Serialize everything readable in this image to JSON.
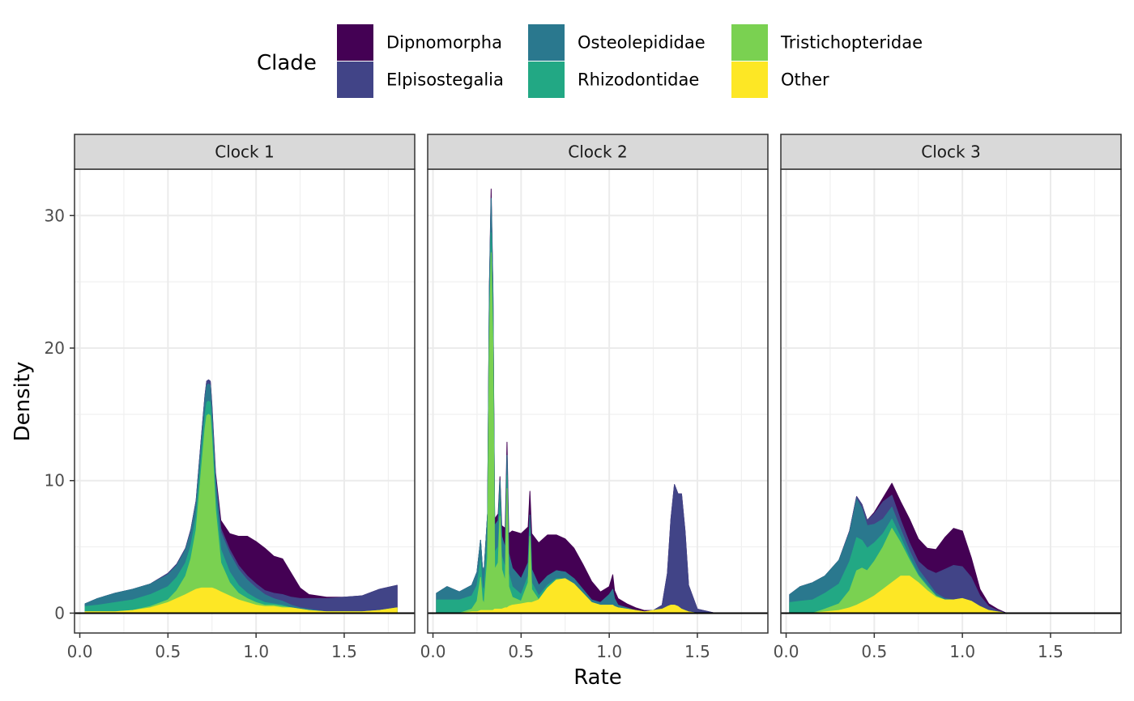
{
  "chart_data": {
    "type": "area",
    "stacked": true,
    "facets": [
      "Clock 1",
      "Clock 2",
      "Clock 3"
    ],
    "xlabel": "Rate",
    "ylabel": "Density",
    "xlim": [
      -0.03,
      1.9
    ],
    "ylim": [
      -1.5,
      33.5
    ],
    "x_ticks": [
      0.0,
      0.5,
      1.0,
      1.5
    ],
    "x_tick_labels": [
      "0.0",
      "0.5",
      "1.0",
      "1.5"
    ],
    "y_ticks": [
      0,
      10,
      20,
      30
    ],
    "y_tick_labels": [
      "0",
      "10",
      "20",
      "30"
    ],
    "grid": true,
    "zero_line": true,
    "legend": {
      "title": "Clade",
      "position": "top",
      "entries": [
        "Dipnomorpha",
        "Elpisostegalia",
        "Osteolepididae",
        "Rhizodontidae",
        "Tristichopteridae",
        "Other"
      ],
      "colors": [
        "#440154",
        "#414487",
        "#2a788e",
        "#22a884",
        "#7ad151",
        "#fde725"
      ]
    },
    "stack_order_bottom_to_top": [
      "Other",
      "Tristichopteridae",
      "Rhizodontidae",
      "Osteolepididae",
      "Elpisostegalia",
      "Dipnomorpha"
    ],
    "panels": [
      {
        "facet": "Clock 1",
        "x": [
          0.03,
          0.1,
          0.2,
          0.3,
          0.4,
          0.5,
          0.55,
          0.6,
          0.63,
          0.66,
          0.69,
          0.71,
          0.72,
          0.73,
          0.74,
          0.75,
          0.77,
          0.8,
          0.85,
          0.9,
          0.95,
          1.0,
          1.05,
          1.1,
          1.15,
          1.2,
          1.25,
          1.3,
          1.4,
          1.5,
          1.6,
          1.7,
          1.8
        ],
        "series": [
          {
            "name": "Other",
            "values": [
              0.1,
              0.1,
              0.1,
              0.2,
              0.4,
              0.8,
              1.1,
              1.4,
              1.6,
              1.8,
              1.9,
              1.9,
              1.9,
              1.9,
              1.9,
              1.9,
              1.8,
              1.6,
              1.3,
              1.0,
              0.8,
              0.6,
              0.5,
              0.5,
              0.4,
              0.4,
              0.3,
              0.2,
              0.1,
              0.1,
              0.1,
              0.2,
              0.4
            ]
          },
          {
            "name": "Tristichopteridae",
            "values": [
              0.0,
              0.0,
              0.0,
              0.0,
              0.1,
              0.2,
              0.6,
              1.4,
              2.5,
              4.5,
              9.0,
              12.0,
              13.0,
              13.1,
              13.0,
              11.0,
              6.0,
              2.2,
              1.0,
              0.5,
              0.3,
              0.2,
              0.1,
              0.1,
              0.1,
              0.0,
              0.0,
              0.0,
              0.0,
              0.0,
              0.0,
              0.0,
              0.0
            ]
          },
          {
            "name": "Rhizodontidae",
            "values": [
              0.4,
              0.5,
              0.7,
              0.8,
              0.9,
              1.0,
              1.0,
              1.0,
              1.0,
              1.0,
              1.0,
              1.0,
              1.0,
              1.0,
              1.0,
              1.0,
              1.0,
              1.0,
              0.8,
              0.6,
              0.4,
              0.3,
              0.2,
              0.1,
              0.1,
              0.0,
              0.0,
              0.0,
              0.0,
              0.0,
              0.0,
              0.0,
              0.0
            ]
          },
          {
            "name": "Osteolepididae",
            "values": [
              0.2,
              0.5,
              0.7,
              0.8,
              0.8,
              0.9,
              0.9,
              1.0,
              1.0,
              1.0,
              1.1,
              1.2,
              1.3,
              1.3,
              1.3,
              1.2,
              1.2,
              1.3,
              1.4,
              1.2,
              1.0,
              0.8,
              0.6,
              0.4,
              0.3,
              0.2,
              0.1,
              0.1,
              0.0,
              0.0,
              0.0,
              0.0,
              0.0
            ]
          },
          {
            "name": "Elpisostegalia",
            "values": [
              0.0,
              0.0,
              0.0,
              0.0,
              0.0,
              0.1,
              0.1,
              0.1,
              0.2,
              0.2,
              0.3,
              0.3,
              0.3,
              0.3,
              0.3,
              0.3,
              0.3,
              0.3,
              0.3,
              0.3,
              0.3,
              0.3,
              0.3,
              0.4,
              0.5,
              0.6,
              0.7,
              0.8,
              1.0,
              1.1,
              1.2,
              1.6,
              1.7
            ]
          },
          {
            "name": "Dipnomorpha",
            "values": [
              0.0,
              0.0,
              0.0,
              0.0,
              0.0,
              0.0,
              0.0,
              0.0,
              0.0,
              0.0,
              0.0,
              0.0,
              0.0,
              0.0,
              0.0,
              0.2,
              0.3,
              0.6,
              1.2,
              2.2,
              3.0,
              3.2,
              3.2,
              2.8,
              2.7,
              1.8,
              0.8,
              0.3,
              0.1,
              0.0,
              0.0,
              0.0,
              0.0
            ]
          }
        ]
      },
      {
        "facet": "Clock 2",
        "x": [
          0.02,
          0.08,
          0.15,
          0.22,
          0.25,
          0.27,
          0.28,
          0.29,
          0.31,
          0.32,
          0.33,
          0.34,
          0.35,
          0.37,
          0.38,
          0.39,
          0.41,
          0.42,
          0.43,
          0.45,
          0.5,
          0.54,
          0.55,
          0.56,
          0.6,
          0.65,
          0.7,
          0.75,
          0.8,
          0.85,
          0.9,
          0.95,
          1.0,
          1.02,
          1.03,
          1.05,
          1.1,
          1.15,
          1.2,
          1.25,
          1.3,
          1.33,
          1.35,
          1.37,
          1.39,
          1.41,
          1.43,
          1.45,
          1.5,
          1.6,
          1.7,
          1.82
        ],
        "series": [
          {
            "name": "Other",
            "values": [
              0.0,
              0.0,
              0.0,
              0.1,
              0.1,
              0.2,
              0.2,
              0.2,
              0.2,
              0.2,
              0.2,
              0.2,
              0.3,
              0.3,
              0.3,
              0.3,
              0.4,
              0.4,
              0.5,
              0.6,
              0.7,
              0.8,
              0.8,
              0.8,
              1.0,
              1.9,
              2.5,
              2.6,
              2.2,
              1.5,
              0.8,
              0.6,
              0.6,
              0.6,
              0.5,
              0.4,
              0.3,
              0.2,
              0.1,
              0.2,
              0.3,
              0.5,
              0.6,
              0.6,
              0.5,
              0.3,
              0.2,
              0.1,
              0.0,
              0.0,
              0.0,
              0.0
            ]
          },
          {
            "name": "Tristichopteridae",
            "values": [
              0.0,
              0.0,
              0.0,
              0.2,
              0.8,
              2.5,
              0.8,
              0.5,
              4.0,
              20.0,
              27.0,
              20.0,
              3.0,
              3.5,
              7.0,
              3.0,
              2.0,
              9.0,
              1.5,
              0.6,
              0.2,
              1.5,
              5.0,
              1.0,
              0.0,
              0.0,
              0.0,
              0.0,
              0.0,
              0.0,
              0.0,
              0.0,
              0.0,
              0.0,
              0.0,
              0.0,
              0.0,
              0.0,
              0.0,
              0.0,
              0.0,
              0.0,
              0.0,
              0.0,
              0.0,
              0.0,
              0.0,
              0.0,
              0.0,
              0.0,
              0.0,
              0.0
            ]
          },
          {
            "name": "Rhizodontidae",
            "values": [
              1.0,
              1.0,
              1.0,
              1.0,
              1.2,
              1.3,
              1.0,
              1.0,
              1.3,
              1.5,
              1.5,
              1.5,
              1.3,
              1.2,
              1.2,
              1.0,
              1.0,
              1.0,
              1.0,
              0.8,
              0.5,
              0.5,
              0.6,
              0.5,
              0.3,
              0.2,
              0.1,
              0.0,
              0.0,
              0.0,
              0.0,
              0.0,
              0.0,
              0.0,
              0.0,
              0.0,
              0.0,
              0.0,
              0.0,
              0.0,
              0.0,
              0.0,
              0.0,
              0.0,
              0.0,
              0.0,
              0.0,
              0.0,
              0.0,
              0.0,
              0.0,
              0.0
            ]
          },
          {
            "name": "Osteolepididae",
            "values": [
              0.5,
              1.0,
              0.6,
              0.8,
              1.0,
              1.5,
              1.5,
              1.5,
              2.0,
              2.6,
              2.6,
              2.5,
              2.0,
              2.0,
              1.5,
              1.5,
              1.5,
              1.5,
              1.5,
              1.4,
              1.2,
              1.0,
              1.0,
              1.0,
              0.8,
              0.7,
              0.6,
              0.5,
              0.4,
              0.3,
              0.2,
              0.2,
              0.8,
              1.2,
              0.6,
              0.2,
              0.1,
              0.0,
              0.0,
              0.0,
              0.0,
              0.0,
              0.0,
              0.0,
              0.0,
              0.0,
              0.0,
              0.0,
              0.0,
              0.0,
              0.0,
              0.0
            ]
          },
          {
            "name": "Elpisostegalia",
            "values": [
              0.0,
              0.0,
              0.0,
              0.0,
              0.0,
              0.0,
              0.0,
              0.0,
              0.0,
              0.0,
              0.0,
              0.0,
              0.0,
              0.0,
              0.0,
              0.0,
              0.0,
              0.0,
              0.0,
              0.0,
              0.0,
              0.0,
              0.0,
              0.0,
              0.0,
              0.0,
              0.0,
              0.0,
              0.0,
              0.0,
              0.0,
              0.0,
              0.0,
              0.0,
              0.0,
              0.0,
              0.0,
              0.0,
              0.0,
              0.0,
              0.3,
              2.5,
              6.5,
              9.1,
              8.5,
              8.7,
              6.0,
              2.0,
              0.3,
              0.0,
              0.0,
              0.0
            ]
          },
          {
            "name": "Dipnomorpha",
            "values": [
              0.0,
              0.0,
              0.0,
              0.0,
              0.0,
              0.0,
              0.0,
              0.0,
              0.0,
              0.3,
              0.7,
              0.5,
              0.5,
              0.5,
              0.3,
              0.8,
              1.5,
              1.0,
              1.5,
              2.8,
              3.4,
              2.7,
              1.8,
              2.7,
              3.2,
              3.1,
              2.7,
              2.5,
              2.3,
              1.9,
              1.4,
              0.8,
              0.6,
              1.1,
              0.6,
              0.5,
              0.3,
              0.2,
              0.1,
              0.0,
              0.0,
              0.0,
              0.0,
              0.0,
              0.0,
              0.0,
              0.0,
              0.0,
              0.0,
              0.0,
              0.0,
              0.0
            ]
          }
        ]
      },
      {
        "facet": "Clock 3",
        "x": [
          0.02,
          0.08,
          0.15,
          0.22,
          0.3,
          0.36,
          0.4,
          0.43,
          0.46,
          0.5,
          0.55,
          0.6,
          0.65,
          0.7,
          0.75,
          0.8,
          0.85,
          0.9,
          0.95,
          1.0,
          1.05,
          1.1,
          1.15,
          1.2,
          1.25,
          1.3,
          1.5,
          1.82
        ],
        "series": [
          {
            "name": "Other",
            "values": [
              0.0,
              0.0,
              0.0,
              0.1,
              0.2,
              0.4,
              0.6,
              0.8,
              1.0,
              1.3,
              1.8,
              2.3,
              2.8,
              2.8,
              2.3,
              1.7,
              1.2,
              1.0,
              1.0,
              1.1,
              0.9,
              0.5,
              0.2,
              0.1,
              0.0,
              0.0,
              0.0,
              0.0
            ]
          },
          {
            "name": "Tristichopteridae",
            "values": [
              0.0,
              0.0,
              0.0,
              0.2,
              0.5,
              1.3,
              2.6,
              2.6,
              2.2,
              2.6,
              3.2,
              4.1,
              2.5,
              1.2,
              0.5,
              0.3,
              0.1,
              0.0,
              0.0,
              0.0,
              0.0,
              0.0,
              0.0,
              0.0,
              0.0,
              0.0,
              0.0,
              0.0
            ]
          },
          {
            "name": "Rhizodontidae",
            "values": [
              0.8,
              0.9,
              1.0,
              1.2,
              1.5,
              2.2,
              2.5,
              2.1,
              1.7,
              1.4,
              1.0,
              0.7,
              0.4,
              0.2,
              0.1,
              0.1,
              0.0,
              0.0,
              0.0,
              0.0,
              0.0,
              0.0,
              0.0,
              0.0,
              0.0,
              0.0,
              0.0,
              0.0
            ]
          },
          {
            "name": "Osteolepididae",
            "values": [
              0.6,
              1.1,
              1.3,
              1.3,
              1.8,
              2.2,
              2.9,
              2.4,
              1.7,
              1.4,
              1.1,
              0.9,
              0.6,
              0.5,
              0.4,
              0.3,
              0.2,
              0.1,
              0.0,
              0.0,
              0.0,
              0.0,
              0.0,
              0.0,
              0.0,
              0.0,
              0.0,
              0.0
            ]
          },
          {
            "name": "Elpisostegalia",
            "values": [
              0.0,
              0.0,
              0.0,
              0.0,
              0.0,
              0.1,
              0.2,
              0.3,
              0.4,
              0.8,
              1.3,
              0.9,
              0.7,
              0.6,
              0.6,
              0.9,
              1.5,
              2.2,
              2.6,
              2.4,
              1.8,
              0.8,
              0.3,
              0.1,
              0.0,
              0.0,
              0.0,
              0.0
            ]
          },
          {
            "name": "Dipnomorpha",
            "values": [
              0.0,
              0.0,
              0.0,
              0.0,
              0.0,
              0.0,
              0.0,
              0.0,
              0.0,
              0.1,
              0.3,
              0.9,
              1.4,
              1.8,
              1.7,
              1.6,
              1.8,
              2.4,
              2.8,
              2.7,
              1.5,
              0.5,
              0.2,
              0.1,
              0.0,
              0.0,
              0.0,
              0.0
            ]
          }
        ]
      }
    ]
  }
}
